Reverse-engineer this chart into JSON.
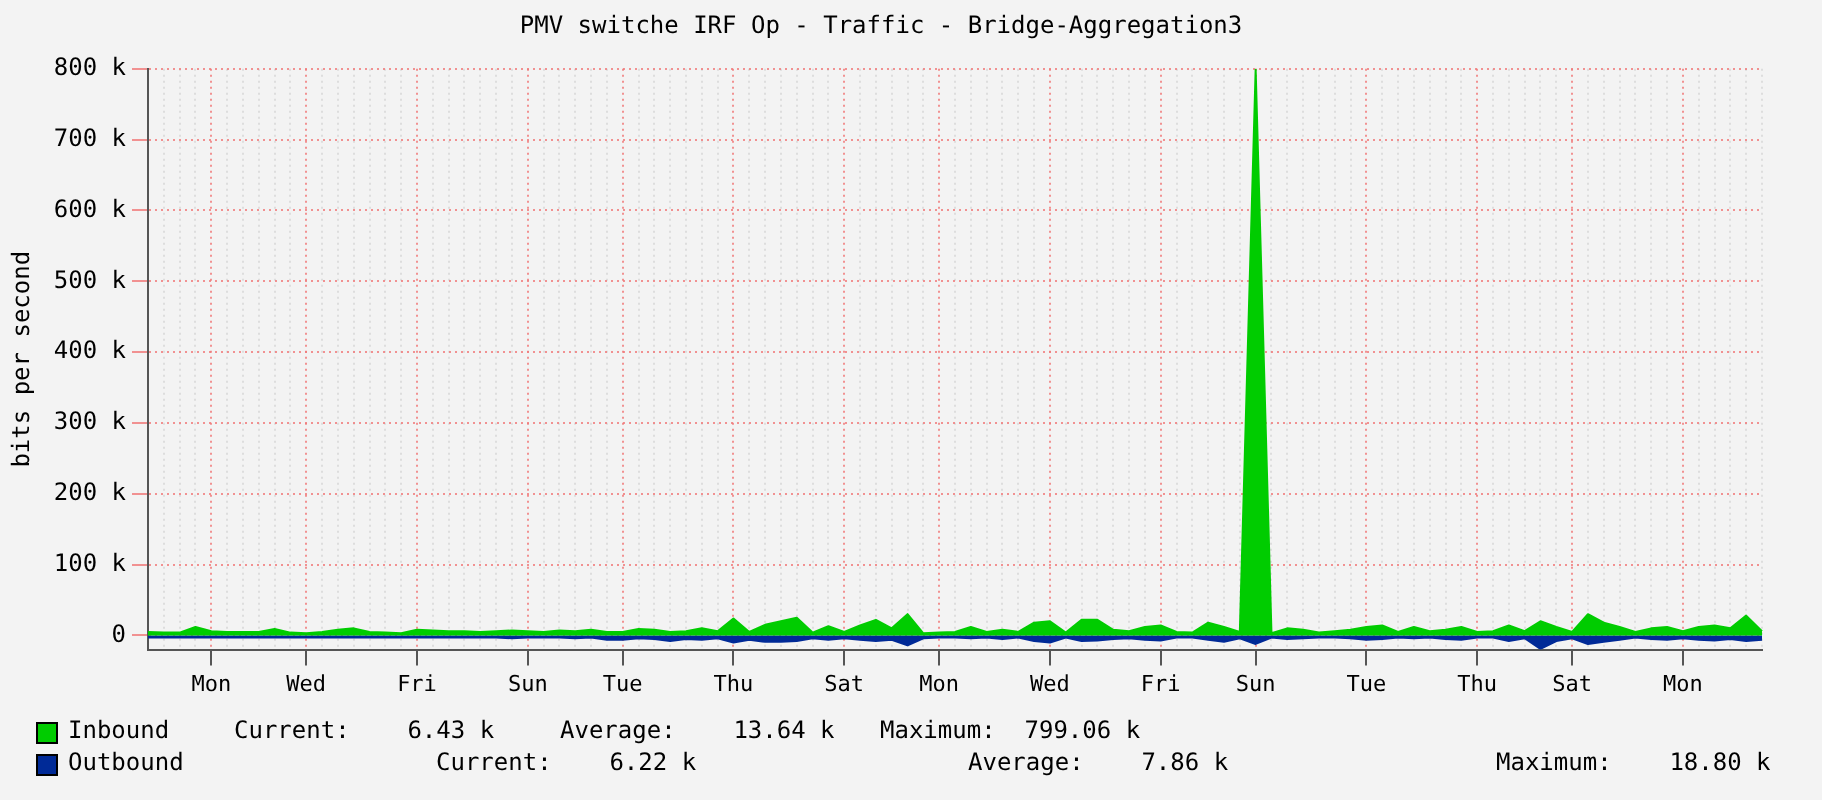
{
  "chart_data": {
    "type": "area",
    "title": "PMV switche IRF Op - Traffic - Bridge-Aggregation3",
    "ylabel": "bits per second",
    "categories": [
      null,
      null,
      null,
      null,
      "Mon",
      null,
      null,
      null,
      null,
      null,
      "Wed",
      null,
      null,
      null,
      null,
      null,
      null,
      "Fri",
      null,
      null,
      null,
      null,
      null,
      null,
      "Sun",
      null,
      null,
      null,
      null,
      null,
      "Tue",
      null,
      null,
      null,
      null,
      null,
      null,
      "Thu",
      null,
      null,
      null,
      null,
      null,
      null,
      "Sat",
      null,
      null,
      null,
      null,
      null,
      "Mon",
      null,
      null,
      null,
      null,
      null,
      null,
      "Wed",
      null,
      null,
      null,
      null,
      null,
      null,
      "Fri",
      null,
      null,
      null,
      null,
      null,
      "Sun",
      null,
      null,
      null,
      null,
      null,
      null,
      "Tue",
      null,
      null,
      null,
      null,
      null,
      null,
      "Thu",
      null,
      null,
      null,
      null,
      null,
      "Sat",
      null,
      null,
      null,
      null,
      null,
      null,
      "Mon",
      null,
      null,
      null,
      null,
      null
    ],
    "series": [
      {
        "name": "Inbound",
        "color": "#00cc00",
        "values": [
          5,
          4,
          4,
          12,
          6,
          5,
          5,
          5,
          9,
          4,
          3,
          5,
          8,
          10,
          5,
          4,
          3,
          8,
          7,
          6,
          6,
          5,
          6,
          7,
          6,
          5,
          7,
          6,
          8,
          5,
          5,
          9,
          8,
          5,
          6,
          10,
          6,
          24,
          5,
          15,
          20,
          25,
          4,
          13,
          5,
          14,
          22,
          10,
          30,
          3,
          4,
          5,
          12,
          5,
          8,
          5,
          18,
          20,
          4,
          22,
          22,
          8,
          6,
          12,
          14,
          5,
          4,
          18,
          12,
          5,
          799,
          3,
          10,
          8,
          4,
          6,
          8,
          12,
          14,
          5,
          12,
          6,
          8,
          12,
          5,
          6,
          14,
          6,
          20,
          12,
          5,
          30,
          18,
          12,
          5,
          10,
          12,
          6,
          12,
          14,
          10,
          28,
          6
        ]
      },
      {
        "name": "Outbound",
        "color": "#002a97",
        "values": [
          -3,
          -3,
          -3,
          -3,
          -3,
          -3,
          -3,
          -3,
          -3,
          -3,
          -3,
          -3,
          -3,
          -3,
          -3,
          -3,
          -3,
          -3,
          -3,
          -3,
          -3,
          -3,
          -3,
          -4,
          -3,
          -3,
          -3,
          -4,
          -3,
          -6,
          -6,
          -4,
          -5,
          -8,
          -5,
          -6,
          -4,
          -10,
          -6,
          -9,
          -9,
          -8,
          -4,
          -6,
          -4,
          -6,
          -8,
          -6,
          -14,
          -4,
          -3,
          -3,
          -4,
          -3,
          -5,
          -3,
          -8,
          -10,
          -3,
          -8,
          -7,
          -5,
          -4,
          -6,
          -7,
          -3,
          -3,
          -6,
          -9,
          -4,
          -12,
          -3,
          -5,
          -4,
          -3,
          -3,
          -4,
          -6,
          -5,
          -3,
          -4,
          -3,
          -5,
          -6,
          -3,
          -3,
          -8,
          -4,
          -19,
          -8,
          -4,
          -12,
          -9,
          -6,
          -3,
          -5,
          -6,
          -4,
          -6,
          -7,
          -5,
          -8,
          -6
        ]
      }
    ],
    "ylim": [
      -20,
      800
    ],
    "yticks": [
      0,
      {
        "value": 100,
        "label": "100 k"
      },
      {
        "value": 200,
        "label": "200 k"
      },
      {
        "value": 300,
        "label": "300 k"
      },
      {
        "value": 400,
        "label": "400 k"
      },
      {
        "value": 500,
        "label": "500 k"
      },
      {
        "value": 600,
        "label": "600 k"
      },
      {
        "value": 700,
        "label": "700 k"
      },
      {
        "value": 800,
        "label": "800 k"
      }
    ],
    "grid": true,
    "legend": "bottom",
    "annotations": [
      "Current:    6.43 k",
      "Average:    13.64 k",
      "Maximum:  799.06 k",
      "Current:    6.22 k",
      "Average:    7.86 k",
      "Maximum:    18.80 k"
    ]
  }
}
